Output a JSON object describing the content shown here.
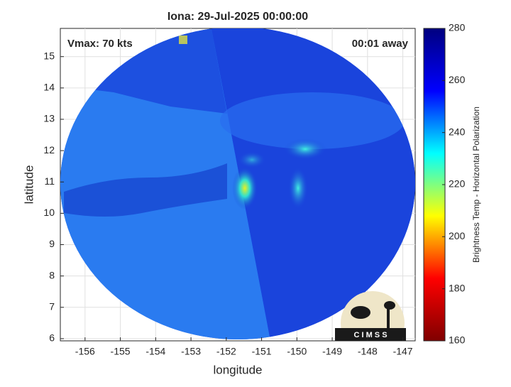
{
  "chart_data": {
    "type": "image",
    "title": "Iona: 29-Jul-2025 00:00:00",
    "xlabel": "longitude",
    "ylabel": "latitude",
    "annotations": [
      "Vmax: 70 kts",
      "00:01 away"
    ],
    "logo_text": "C I M S S",
    "xlim": [
      -156.7,
      -146.65
    ],
    "ylim": [
      5.93,
      15.9
    ],
    "xticks": [
      -156,
      -155,
      -154,
      -153,
      -152,
      -151,
      -150,
      -149,
      -148,
      -147
    ],
    "yticks": [
      6,
      7,
      8,
      9,
      10,
      11,
      12,
      13,
      14,
      15
    ],
    "grid": true,
    "colorbar": {
      "label": "Brightness Temp - Horizontal Polarization",
      "lim": [
        160,
        280
      ],
      "ticks": [
        160,
        180,
        200,
        220,
        240,
        260,
        280
      ],
      "colormap": [
        "#7f0000",
        "#ff0000",
        "#ffff00",
        "#00ffff",
        "#0000ff",
        "#00007f"
      ]
    }
  }
}
